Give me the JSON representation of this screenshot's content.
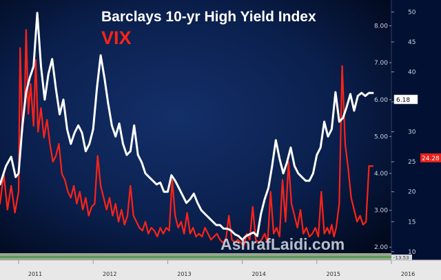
{
  "chart_data": {
    "type": "line",
    "title": "Barclays 10-yr High Yield Index",
    "subtitle": "VIX",
    "watermark": "AshrafLaidi.com",
    "grid": false,
    "legend": "top-center title text",
    "x_ticks": [
      "2011",
      "2012",
      "2013",
      "2014",
      "2015",
      "2016"
    ],
    "x_range": [
      2010.75,
      2016.0
    ],
    "y_left": {
      "label": "",
      "ticks": [
        2.0,
        3.0,
        4.0,
        5.0,
        6.0,
        7.0,
        8.0
      ],
      "tick_labels": [
        "2.00",
        "3.00",
        "4.00",
        "5.00",
        "6.00",
        "7.00",
        "8.00"
      ],
      "range": [
        1.65,
        8.7
      ]
    },
    "y_right": {
      "label": "",
      "ticks": [
        10,
        15,
        20,
        25,
        30,
        35,
        40,
        45,
        50
      ],
      "range": [
        8.6,
        52
      ]
    },
    "bottom_band_label": "-13.53",
    "series": [
      {
        "name": "Barclays 10-yr High Yield Index",
        "color": "#ffffff",
        "axis": "left",
        "last_value": "6.18",
        "x": [
          2010.75,
          2010.83,
          2010.9,
          2010.96,
          2011.0,
          2011.05,
          2011.1,
          2011.15,
          2011.2,
          2011.25,
          2011.3,
          2011.35,
          2011.4,
          2011.45,
          2011.5,
          2011.55,
          2011.6,
          2011.65,
          2011.7,
          2011.75,
          2011.8,
          2011.85,
          2011.9,
          2011.95,
          2012.0,
          2012.05,
          2012.1,
          2012.15,
          2012.2,
          2012.25,
          2012.3,
          2012.35,
          2012.4,
          2012.45,
          2012.5,
          2012.55,
          2012.6,
          2012.65,
          2012.7,
          2012.75,
          2012.8,
          2012.85,
          2012.9,
          2012.95,
          2013.0,
          2013.05,
          2013.1,
          2013.15,
          2013.2,
          2013.25,
          2013.3,
          2013.35,
          2013.4,
          2013.45,
          2013.5,
          2013.55,
          2013.6,
          2013.65,
          2013.7,
          2013.75,
          2013.8,
          2013.85,
          2013.9,
          2013.95,
          2014.0,
          2014.05,
          2014.1,
          2014.15,
          2014.2,
          2014.25,
          2014.3,
          2014.35,
          2014.4,
          2014.45,
          2014.5,
          2014.55,
          2014.6,
          2014.65,
          2014.7,
          2014.75,
          2014.8,
          2014.85,
          2014.9,
          2014.95,
          2015.0,
          2015.05,
          2015.1,
          2015.15,
          2015.2,
          2015.25,
          2015.3,
          2015.35,
          2015.4,
          2015.45,
          2015.5,
          2015.55,
          2015.6,
          2015.65,
          2015.7,
          2015.75
        ],
        "values": [
          3.7,
          4.2,
          4.45,
          3.9,
          4.0,
          5.3,
          6.2,
          6.6,
          6.9,
          8.35,
          6.9,
          6.0,
          6.7,
          7.1,
          6.3,
          5.6,
          6.0,
          5.2,
          4.8,
          5.1,
          5.3,
          5.1,
          4.6,
          4.8,
          5.2,
          6.3,
          7.2,
          6.6,
          5.9,
          5.3,
          5.0,
          5.35,
          4.8,
          4.5,
          4.6,
          5.3,
          4.5,
          4.3,
          4.0,
          3.9,
          3.8,
          3.7,
          3.75,
          3.5,
          3.5,
          3.95,
          3.8,
          3.6,
          3.4,
          3.2,
          3.3,
          3.45,
          3.2,
          3.0,
          2.9,
          2.8,
          2.7,
          2.6,
          2.6,
          2.5,
          2.5,
          2.45,
          2.35,
          2.3,
          2.2,
          2.3,
          2.35,
          2.4,
          2.3,
          2.9,
          3.3,
          3.6,
          4.2,
          4.9,
          4.4,
          4.0,
          4.3,
          4.7,
          4.2,
          4.0,
          3.9,
          3.8,
          3.8,
          4.0,
          4.5,
          4.7,
          5.4,
          5.0,
          5.2,
          6.2,
          5.4,
          5.5,
          5.8,
          6.15,
          5.7,
          6.1,
          6.18,
          6.1,
          6.18,
          6.18
        ]
      },
      {
        "name": "VIX",
        "color": "#ff2318",
        "axis": "right",
        "last_value": "24.28",
        "x": [
          2010.75,
          2010.8,
          2010.85,
          2010.9,
          2010.95,
          2011.0,
          2011.02,
          2011.05,
          2011.08,
          2011.1,
          2011.13,
          2011.16,
          2011.2,
          2011.23,
          2011.26,
          2011.3,
          2011.34,
          2011.38,
          2011.42,
          2011.46,
          2011.5,
          2011.54,
          2011.58,
          2011.62,
          2011.66,
          2011.7,
          2011.74,
          2011.78,
          2011.82,
          2011.86,
          2011.9,
          2011.94,
          2011.98,
          2012.02,
          2012.06,
          2012.1,
          2012.14,
          2012.18,
          2012.22,
          2012.26,
          2012.3,
          2012.34,
          2012.38,
          2012.42,
          2012.46,
          2012.5,
          2012.54,
          2012.58,
          2012.62,
          2012.66,
          2012.7,
          2012.74,
          2012.78,
          2012.82,
          2012.86,
          2012.9,
          2012.94,
          2012.98,
          2013.02,
          2013.06,
          2013.1,
          2013.14,
          2013.18,
          2013.22,
          2013.26,
          2013.3,
          2013.34,
          2013.38,
          2013.42,
          2013.46,
          2013.5,
          2013.54,
          2013.58,
          2013.62,
          2013.66,
          2013.7,
          2013.74,
          2013.78,
          2013.82,
          2013.86,
          2013.9,
          2013.94,
          2013.98,
          2014.02,
          2014.06,
          2014.1,
          2014.14,
          2014.18,
          2014.22,
          2014.26,
          2014.3,
          2014.34,
          2014.38,
          2014.42,
          2014.46,
          2014.5,
          2014.54,
          2014.58,
          2014.62,
          2014.66,
          2014.7,
          2014.74,
          2014.78,
          2014.82,
          2014.86,
          2014.9,
          2014.94,
          2014.98,
          2015.02,
          2015.06,
          2015.1,
          2015.14,
          2015.17,
          2015.2,
          2015.23,
          2015.26,
          2015.3,
          2015.34,
          2015.38,
          2015.42,
          2015.46,
          2015.5,
          2015.54,
          2015.58,
          2015.62,
          2015.66,
          2015.7,
          2015.75
        ],
        "values": [
          18.0,
          23.0,
          17.0,
          21.0,
          16.5,
          20.0,
          44.0,
          30.0,
          34.0,
          47.0,
          33.0,
          38.0,
          31.0,
          42.0,
          30.0,
          34.0,
          29.0,
          32.0,
          28.0,
          25.0,
          26.0,
          28.0,
          23.0,
          22.0,
          20.0,
          19.0,
          21.0,
          18.0,
          20.0,
          17.0,
          19.0,
          16.0,
          17.5,
          18.0,
          26.0,
          21.0,
          19.0,
          17.0,
          19.0,
          16.0,
          18.0,
          15.0,
          17.0,
          14.5,
          16.0,
          21.0,
          16.0,
          15.0,
          14.0,
          13.5,
          15.0,
          13.0,
          14.0,
          13.5,
          12.5,
          14.0,
          13.0,
          14.0,
          13.5,
          22.0,
          16.0,
          14.0,
          15.0,
          13.0,
          16.5,
          13.0,
          14.0,
          12.5,
          13.0,
          12.5,
          14.0,
          13.0,
          12.0,
          12.5,
          13.0,
          12.0,
          11.5,
          12.0,
          16.0,
          12.0,
          11.5,
          12.0,
          11.5,
          11.0,
          13.0,
          12.0,
          17.5,
          12.0,
          11.5,
          12.0,
          13.0,
          11.5,
          20.0,
          13.0,
          14.0,
          12.5,
          22.0,
          15.0,
          25.0,
          18.0,
          16.0,
          14.0,
          17.0,
          13.0,
          14.0,
          12.5,
          13.0,
          14.0,
          12.5,
          20.0,
          13.0,
          14.0,
          13.0,
          14.5,
          12.5,
          14.0,
          18.0,
          41.0,
          28.0,
          24.0,
          19.0,
          17.0,
          15.0,
          16.0,
          14.5,
          15.0,
          24.28,
          24.28
        ]
      }
    ]
  }
}
